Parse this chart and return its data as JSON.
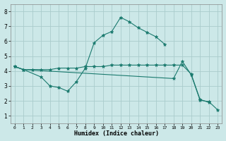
{
  "xlabel": "Humidex (Indice chaleur)",
  "xlim": [
    -0.5,
    23.5
  ],
  "ylim": [
    0.5,
    8.5
  ],
  "xticks": [
    0,
    1,
    2,
    3,
    4,
    5,
    6,
    7,
    8,
    9,
    10,
    11,
    12,
    13,
    14,
    15,
    16,
    17,
    18,
    19,
    20,
    21,
    22,
    23
  ],
  "yticks": [
    1,
    2,
    3,
    4,
    5,
    6,
    7,
    8
  ],
  "bg_color": "#cce8e8",
  "grid_color": "#aacccc",
  "line_color": "#1a7a6e",
  "lines": [
    {
      "x": [
        0,
        1,
        2,
        3,
        4,
        5,
        6,
        7,
        8,
        9,
        10,
        11,
        12,
        13,
        14,
        15,
        16,
        17,
        18,
        19,
        20,
        21,
        22
      ],
      "y": [
        4.3,
        4.1,
        4.1,
        4.1,
        4.1,
        4.2,
        4.2,
        4.2,
        4.3,
        4.3,
        4.3,
        4.4,
        4.4,
        4.4,
        4.4,
        4.4,
        4.4,
        4.4,
        4.4,
        4.4,
        3.8,
        2.1,
        1.9
      ]
    },
    {
      "x": [
        0,
        1,
        3,
        4,
        5,
        6,
        7,
        8,
        9,
        10,
        11,
        12,
        13,
        14,
        15,
        16,
        17
      ],
      "y": [
        4.3,
        4.1,
        3.6,
        3.0,
        2.9,
        2.65,
        3.3,
        4.2,
        5.9,
        6.4,
        6.65,
        7.6,
        7.3,
        6.9,
        6.6,
        6.3,
        5.8
      ]
    },
    {
      "x": [
        0,
        1,
        18,
        19,
        20,
        21,
        22,
        23
      ],
      "y": [
        4.3,
        4.1,
        3.5,
        4.65,
        3.75,
        2.05,
        1.95,
        1.4
      ]
    }
  ]
}
